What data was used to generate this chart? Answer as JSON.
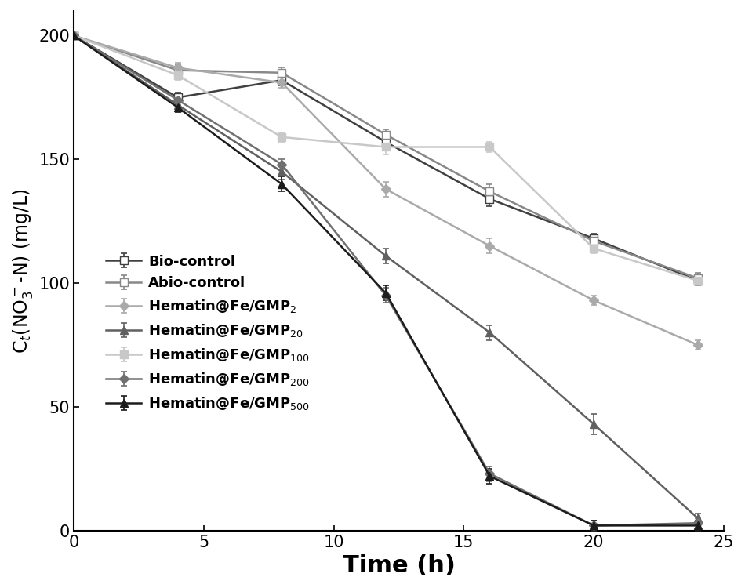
{
  "title": "",
  "xlabel": "Time (h)",
  "ylabel": "C$_t$(NO$_3^-$-N) (mg/L)",
  "xlim": [
    0,
    25
  ],
  "ylim": [
    0,
    210
  ],
  "xticks": [
    0,
    5,
    10,
    15,
    20,
    25
  ],
  "yticks": [
    0,
    50,
    100,
    150,
    200
  ],
  "background_color": "#ffffff",
  "series": [
    {
      "label": "Bio-control",
      "color": "#404040",
      "marker": "s",
      "marker_face": "white",
      "marker_edge": "#404040",
      "linestyle": "-",
      "linewidth": 1.8,
      "x": [
        0,
        4,
        8,
        12,
        16,
        20,
        24
      ],
      "y": [
        200,
        175,
        182,
        157,
        134,
        118,
        101
      ],
      "yerr": [
        0,
        2,
        2,
        2,
        3,
        2,
        2
      ]
    },
    {
      "label": "Abio-control",
      "color": "#888888",
      "marker": "s",
      "marker_face": "white",
      "marker_edge": "#888888",
      "linestyle": "-",
      "linewidth": 1.8,
      "x": [
        0,
        4,
        8,
        12,
        16,
        20,
        24
      ],
      "y": [
        200,
        186,
        185,
        160,
        137,
        117,
        102
      ],
      "yerr": [
        0,
        2,
        2,
        2,
        3,
        2,
        2
      ]
    },
    {
      "label": "Hematin@Fe/GMP$_2$",
      "color": "#aaaaaa",
      "marker": "D",
      "marker_face": "#aaaaaa",
      "marker_edge": "#aaaaaa",
      "linestyle": "-",
      "linewidth": 1.8,
      "x": [
        0,
        4,
        8,
        12,
        16,
        20,
        24
      ],
      "y": [
        200,
        187,
        181,
        138,
        115,
        93,
        75
      ],
      "yerr": [
        0,
        2,
        2,
        3,
        3,
        2,
        2
      ]
    },
    {
      "label": "Hematin@Fe/GMP$_{20}$",
      "color": "#606060",
      "marker": "^",
      "marker_face": "#606060",
      "marker_edge": "#606060",
      "linestyle": "-",
      "linewidth": 1.8,
      "x": [
        0,
        4,
        8,
        12,
        16,
        20,
        24
      ],
      "y": [
        200,
        172,
        145,
        111,
        80,
        43,
        5
      ],
      "yerr": [
        0,
        2,
        3,
        3,
        3,
        4,
        2
      ]
    },
    {
      "label": "Hematin@Fe/GMP$_{100}$",
      "color": "#c8c8c8",
      "marker": "s",
      "marker_face": "#c8c8c8",
      "marker_edge": "#c8c8c8",
      "linestyle": "-",
      "linewidth": 1.8,
      "x": [
        0,
        4,
        8,
        12,
        16,
        20,
        24
      ],
      "y": [
        200,
        184,
        159,
        155,
        155,
        114,
        101
      ],
      "yerr": [
        0,
        2,
        2,
        3,
        2,
        2,
        2
      ]
    },
    {
      "label": "Hematin@Fe/GMP$_{200}$",
      "color": "#707070",
      "marker": "D",
      "marker_face": "#707070",
      "marker_edge": "#707070",
      "linestyle": "-",
      "linewidth": 1.8,
      "x": [
        0,
        4,
        8,
        12,
        16,
        20,
        24
      ],
      "y": [
        200,
        174,
        148,
        95,
        23,
        2,
        3
      ],
      "yerr": [
        0,
        2,
        2,
        3,
        3,
        2,
        2
      ]
    },
    {
      "label": "Hematin@Fe/GMP$_{500}$",
      "color": "#1c1c1c",
      "marker": "^",
      "marker_face": "#1c1c1c",
      "marker_edge": "#1c1c1c",
      "linestyle": "-",
      "linewidth": 1.8,
      "x": [
        0,
        4,
        8,
        12,
        16,
        20,
        24
      ],
      "y": [
        200,
        171,
        140,
        96,
        22,
        2,
        2
      ],
      "yerr": [
        0,
        2,
        3,
        3,
        3,
        2,
        2
      ]
    }
  ],
  "legend_fontsize": 13,
  "ylabel_fontsize": 17,
  "tick_fontsize": 15,
  "xlabel_fontsize": 22,
  "figsize": [
    9.5,
    7.5
  ],
  "dpi": 100
}
